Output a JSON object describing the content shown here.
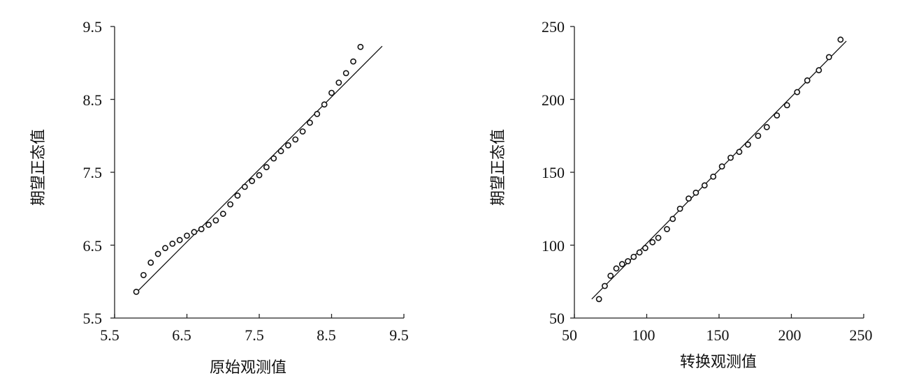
{
  "chart_data": [
    {
      "type": "scatter",
      "xlabel": "原始观测值",
      "ylabel": "期望正态值",
      "xlim": [
        5.5,
        9.5
      ],
      "ylim": [
        5.5,
        9.5
      ],
      "x_ticks": [
        "5.5",
        "6.5",
        "7.5",
        "8.5",
        "9.5"
      ],
      "y_ticks": [
        "9.5",
        "8.5",
        "7.5",
        "6.5",
        "5.5"
      ],
      "series": [
        {
          "x": [
            5.8,
            5.9,
            6.0,
            6.1,
            6.2,
            6.3,
            6.4,
            6.5,
            6.6,
            6.7,
            6.8,
            6.9,
            7.0,
            7.1,
            7.2,
            7.3,
            7.4,
            7.5,
            7.6,
            7.7,
            7.8,
            7.9,
            8.0,
            8.1,
            8.2,
            8.3,
            8.4,
            8.5,
            8.6,
            8.7,
            8.8,
            8.9
          ],
          "y": [
            5.86,
            6.09,
            6.26,
            6.38,
            6.46,
            6.52,
            6.57,
            6.63,
            6.68,
            6.72,
            6.78,
            6.84,
            6.93,
            7.06,
            7.18,
            7.3,
            7.38,
            7.46,
            7.57,
            7.69,
            7.79,
            7.87,
            7.95,
            8.06,
            8.18,
            8.3,
            8.43,
            8.59,
            8.73,
            8.86,
            9.02,
            9.22
          ]
        }
      ],
      "reference_line": {
        "x": [
          5.8,
          9.2
        ],
        "y": [
          5.85,
          9.23
        ]
      }
    },
    {
      "type": "scatter",
      "xlabel": "转换观测值",
      "ylabel": "期望正态值",
      "xlim": [
        50,
        250
      ],
      "ylim": [
        50,
        250
      ],
      "x_ticks": [
        "50",
        "100",
        "150",
        "200",
        "250"
      ],
      "y_ticks": [
        "250",
        "200",
        "150",
        "100",
        "50"
      ],
      "series": [
        {
          "x": [
            67,
            71,
            75,
            79,
            83,
            87,
            91,
            95,
            99,
            104,
            108,
            114,
            118,
            123,
            129,
            134,
            140,
            146,
            152,
            158,
            164,
            170,
            177,
            183,
            190,
            197,
            204,
            211,
            219,
            226,
            234
          ],
          "y": [
            63,
            72,
            79,
            84,
            87,
            89,
            92,
            95,
            98,
            102,
            105,
            111,
            118,
            125,
            132,
            136,
            141,
            147,
            154,
            160,
            164,
            169,
            175,
            181,
            189,
            196,
            205,
            213,
            220,
            229,
            241
          ]
        }
      ],
      "reference_line": {
        "x": [
          62,
          238
        ],
        "y": [
          63,
          240
        ]
      }
    }
  ]
}
